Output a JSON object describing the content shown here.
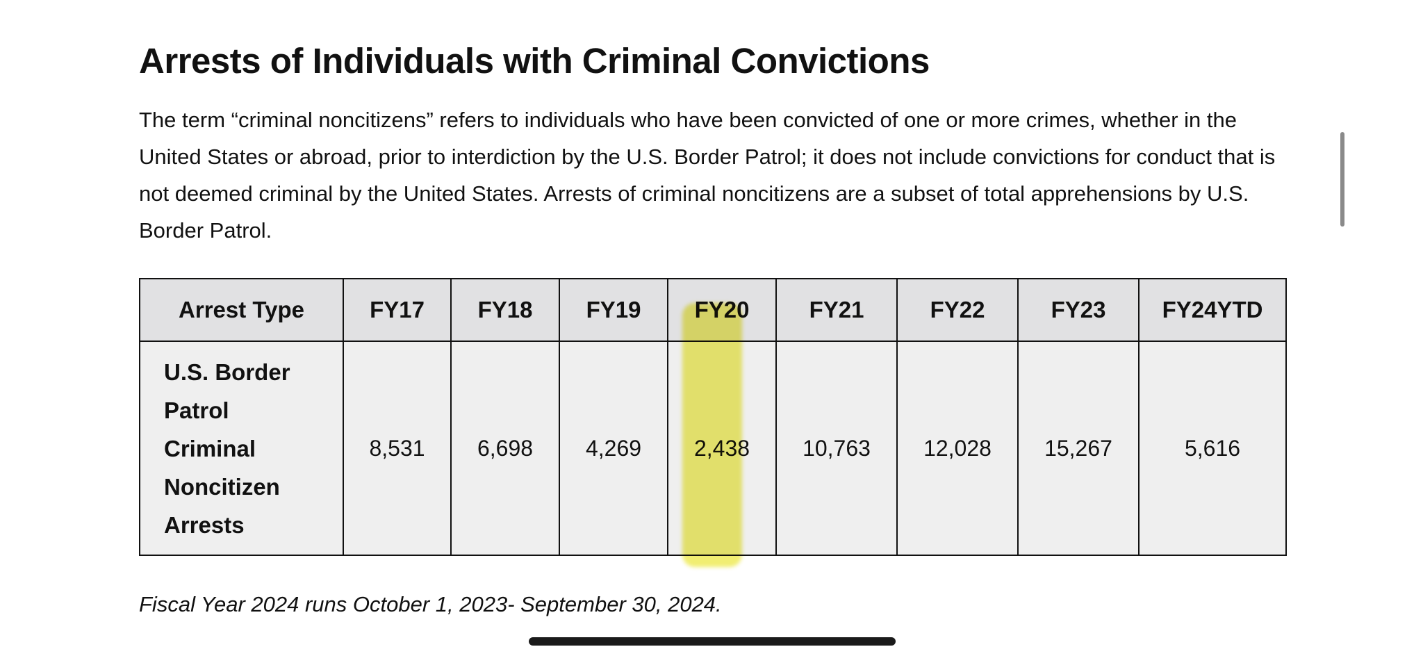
{
  "section": {
    "title": "Arrests of Individuals with Criminal Convictions",
    "intro": "The term “criminal noncitizens” refers to individuals who have been convicted of one or more crimes, whether in the United States or abroad, prior to interdiction by the U.S. Border Patrol; it does not include convictions for conduct that is not deemed criminal by the United States. Arrests of criminal noncitizens are a subset of total apprehensions by U.S. Border Patrol."
  },
  "table": {
    "headers": [
      "Arrest Type",
      "FY17",
      "FY18",
      "FY19",
      "FY20",
      "FY21",
      "FY22",
      "FY23",
      "FY24YTD"
    ],
    "rows": [
      {
        "label_lines": [
          "U.S. Border",
          "Patrol",
          "Criminal",
          "Noncitizen",
          "Arrests"
        ],
        "values": [
          "8,531",
          "6,698",
          "4,269",
          "2,438",
          "10,763",
          "12,028",
          "15,267",
          "5,616"
        ]
      }
    ],
    "highlighted_column": "FY20"
  },
  "footnote": "Fiscal Year 2024 runs October 1, 2023- September 30, 2024.",
  "colors": {
    "header_bg": "#e1e1e3",
    "cell_bg": "#efefef",
    "highlight": "#ece83c",
    "border": "#111111"
  }
}
